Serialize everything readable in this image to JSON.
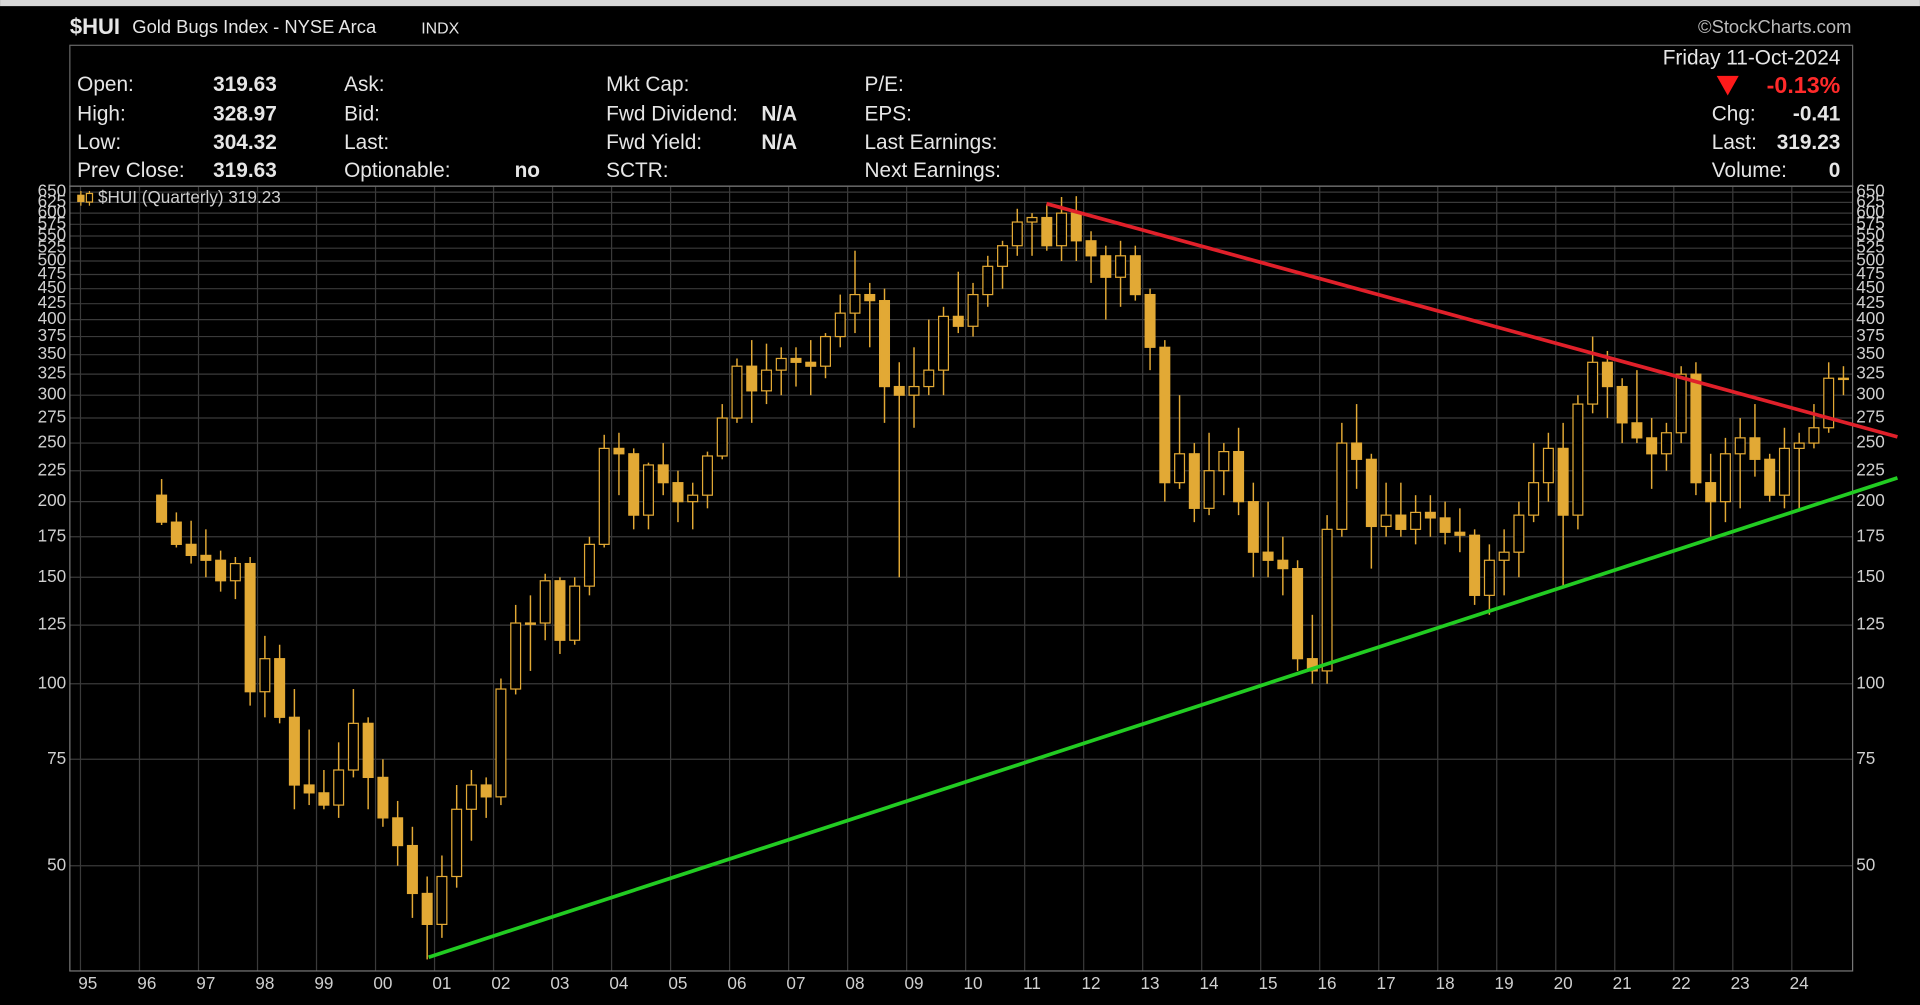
{
  "header": {
    "symbol": "$HUI",
    "name": "Gold Bugs Index - NYSE Arca",
    "exchange": "INDX",
    "source": "©StockCharts.com",
    "date": "Friday 11-Oct-2024",
    "change_pct": "-0.13%",
    "stats": [
      [
        {
          "label": "Open:",
          "value": "319.63"
        },
        {
          "label": "High:",
          "value": "328.97"
        },
        {
          "label": "Low:",
          "value": "304.32"
        },
        {
          "label": "Prev Close:",
          "value": "319.63"
        }
      ],
      [
        {
          "label": "Ask:"
        },
        {
          "label": "Bid:"
        },
        {
          "label": "Last:"
        },
        {
          "label": "Optionable:",
          "value": "no"
        }
      ],
      [
        {
          "label": "Mkt Cap:"
        },
        {
          "label": "Fwd Dividend:",
          "value": "N/A"
        },
        {
          "label": "Fwd Yield:",
          "value": "N/A"
        },
        {
          "label": "SCTR:"
        }
      ],
      [
        {
          "label": "P/E:"
        },
        {
          "label": "EPS:"
        },
        {
          "label": "Last Earnings:"
        },
        {
          "label": "Next Earnings:"
        }
      ]
    ],
    "quote": [
      {
        "label": "Chg:",
        "value": "-0.41"
      },
      {
        "label": "Last:",
        "value": "319.23"
      },
      {
        "label": "Volume:",
        "value": "0"
      }
    ]
  },
  "chart_data": {
    "type": "candlestick",
    "legend": "$HUI (Quarterly) 319.23",
    "color": "#e2a935",
    "log_scale": true,
    "grid": true,
    "xlim": [
      1994.82,
      2025.03
    ],
    "ylim": [
      33.5,
      665
    ],
    "xticks": [
      {
        "value": 1995,
        "label": "95"
      },
      {
        "value": 1996,
        "label": "96"
      },
      {
        "value": 1997,
        "label": "97"
      },
      {
        "value": 1998,
        "label": "98"
      },
      {
        "value": 1999,
        "label": "99"
      },
      {
        "value": 2000,
        "label": "00"
      },
      {
        "value": 2001,
        "label": "01"
      },
      {
        "value": 2002,
        "label": "02"
      },
      {
        "value": 2003,
        "label": "03"
      },
      {
        "value": 2004,
        "label": "04"
      },
      {
        "value": 2005,
        "label": "05"
      },
      {
        "value": 2006,
        "label": "06"
      },
      {
        "value": 2007,
        "label": "07"
      },
      {
        "value": 2008,
        "label": "08"
      },
      {
        "value": 2009,
        "label": "09"
      },
      {
        "value": 2010,
        "label": "10"
      },
      {
        "value": 2011,
        "label": "11"
      },
      {
        "value": 2012,
        "label": "12"
      },
      {
        "value": 2013,
        "label": "13"
      },
      {
        "value": 2014,
        "label": "14"
      },
      {
        "value": 2015,
        "label": "15"
      },
      {
        "value": 2016,
        "label": "16"
      },
      {
        "value": 2017,
        "label": "17"
      },
      {
        "value": 2018,
        "label": "18"
      },
      {
        "value": 2019,
        "label": "19"
      },
      {
        "value": 2020,
        "label": "20"
      },
      {
        "value": 2021,
        "label": "21"
      },
      {
        "value": 2022,
        "label": "22"
      },
      {
        "value": 2023,
        "label": "23"
      },
      {
        "value": 2024,
        "label": "24"
      }
    ],
    "yticks": [
      50,
      75,
      100,
      125,
      150,
      175,
      200,
      225,
      250,
      275,
      300,
      325,
      350,
      375,
      400,
      425,
      450,
      475,
      500,
      525,
      550,
      575,
      600,
      625,
      650
    ],
    "x": [
      1996.375,
      1996.625,
      1996.875,
      1997.125,
      1997.375,
      1997.625,
      1997.875,
      1998.125,
      1998.375,
      1998.625,
      1998.875,
      1999.125,
      1999.375,
      1999.625,
      1999.875,
      2000.125,
      2000.375,
      2000.625,
      2000.875,
      2001.125,
      2001.375,
      2001.625,
      2001.875,
      2002.125,
      2002.375,
      2002.625,
      2002.875,
      2003.125,
      2003.375,
      2003.625,
      2003.875,
      2004.125,
      2004.375,
      2004.625,
      2004.875,
      2005.125,
      2005.375,
      2005.625,
      2005.875,
      2006.125,
      2006.375,
      2006.625,
      2006.875,
      2007.125,
      2007.375,
      2007.625,
      2007.875,
      2008.125,
      2008.375,
      2008.625,
      2008.875,
      2009.125,
      2009.375,
      2009.625,
      2009.875,
      2010.125,
      2010.375,
      2010.625,
      2010.875,
      2011.125,
      2011.375,
      2011.625,
      2011.875,
      2012.125,
      2012.375,
      2012.625,
      2012.875,
      2013.125,
      2013.375,
      2013.625,
      2013.875,
      2014.125,
      2014.375,
      2014.625,
      2014.875,
      2015.125,
      2015.375,
      2015.625,
      2015.875,
      2016.125,
      2016.375,
      2016.625,
      2016.875,
      2017.125,
      2017.375,
      2017.625,
      2017.875,
      2018.125,
      2018.375,
      2018.625,
      2018.875,
      2019.125,
      2019.375,
      2019.625,
      2019.875,
      2020.125,
      2020.375,
      2020.625,
      2020.875,
      2021.125,
      2021.375,
      2021.625,
      2021.875,
      2022.125,
      2022.375,
      2022.625,
      2022.875,
      2023.125,
      2023.375,
      2023.625,
      2023.875,
      2024.125,
      2024.375,
      2024.625,
      2024.875
    ],
    "open": [
      205,
      185,
      170,
      163,
      160,
      148,
      158,
      97,
      110,
      88,
      68,
      66,
      63,
      72,
      86,
      70,
      60,
      54,
      45,
      40,
      48,
      62,
      68,
      65,
      98,
      126,
      126,
      148,
      118,
      145,
      170,
      245,
      240,
      190,
      230,
      215,
      200,
      205,
      238,
      275,
      335,
      305,
      330,
      345,
      340,
      335,
      375,
      410,
      440,
      430,
      310,
      300,
      310,
      330,
      405,
      390,
      440,
      490,
      530,
      580,
      590,
      530,
      600,
      540,
      510,
      470,
      510,
      440,
      360,
      215,
      240,
      195,
      225,
      242,
      200,
      165,
      160,
      155,
      110,
      105,
      180,
      250,
      235,
      182,
      190,
      180,
      192,
      188,
      178,
      176,
      140,
      160,
      165,
      190,
      215,
      245,
      190,
      290,
      340,
      310,
      270,
      255,
      240,
      260,
      325,
      215,
      200,
      240,
      255,
      235,
      205,
      245,
      250,
      265,
      320
    ],
    "high": [
      218,
      192,
      186,
      180,
      166,
      162,
      162,
      120,
      116,
      98,
      84,
      72,
      80,
      98,
      88,
      75,
      64,
      58,
      48,
      52,
      68,
      72,
      70,
      102,
      135,
      140,
      152,
      150,
      150,
      175,
      258,
      260,
      245,
      232,
      250,
      225,
      215,
      242,
      290,
      345,
      370,
      365,
      360,
      360,
      370,
      380,
      440,
      520,
      460,
      450,
      340,
      360,
      400,
      420,
      480,
      460,
      510,
      540,
      610,
      600,
      620,
      638,
      640,
      560,
      530,
      540,
      530,
      450,
      370,
      300,
      250,
      260,
      250,
      265,
      215,
      200,
      175,
      160,
      130,
      190,
      270,
      290,
      240,
      215,
      215,
      205,
      205,
      200,
      195,
      180,
      170,
      180,
      200,
      250,
      260,
      270,
      300,
      375,
      355,
      320,
      330,
      275,
      270,
      335,
      340,
      240,
      255,
      275,
      290,
      240,
      265,
      260,
      290,
      340,
      335
    ],
    "low": [
      183,
      168,
      158,
      150,
      142,
      138,
      92,
      88,
      86,
      62,
      63,
      62,
      60,
      70,
      62,
      58,
      50,
      41,
      35,
      38,
      46,
      55,
      60,
      63,
      96,
      105,
      118,
      112,
      116,
      140,
      168,
      205,
      180,
      180,
      205,
      185,
      180,
      195,
      235,
      270,
      270,
      290,
      300,
      310,
      300,
      320,
      360,
      380,
      360,
      270,
      150,
      265,
      300,
      300,
      380,
      375,
      420,
      450,
      510,
      510,
      520,
      500,
      500,
      460,
      400,
      420,
      430,
      330,
      200,
      210,
      185,
      190,
      205,
      190,
      150,
      150,
      140,
      105,
      100,
      100,
      175,
      210,
      155,
      175,
      175,
      170,
      175,
      170,
      165,
      135,
      130,
      140,
      150,
      185,
      200,
      145,
      180,
      280,
      275,
      250,
      250,
      210,
      225,
      250,
      205,
      175,
      185,
      195,
      220,
      200,
      195,
      195,
      245,
      260,
      300
    ],
    "close": [
      185,
      170,
      163,
      160,
      148,
      158,
      97,
      110,
      88,
      68,
      66,
      63,
      72,
      86,
      70,
      60,
      54,
      45,
      40,
      48,
      62,
      68,
      65,
      98,
      126,
      126,
      148,
      118,
      145,
      170,
      245,
      240,
      190,
      230,
      215,
      200,
      205,
      238,
      275,
      335,
      305,
      330,
      345,
      340,
      335,
      375,
      410,
      440,
      430,
      310,
      300,
      310,
      330,
      405,
      390,
      440,
      490,
      530,
      580,
      590,
      530,
      600,
      540,
      510,
      470,
      510,
      440,
      360,
      215,
      240,
      195,
      225,
      242,
      200,
      165,
      160,
      155,
      110,
      105,
      180,
      250,
      235,
      182,
      190,
      180,
      192,
      188,
      178,
      176,
      140,
      160,
      165,
      190,
      215,
      245,
      190,
      290,
      340,
      310,
      270,
      255,
      240,
      260,
      325,
      215,
      200,
      240,
      255,
      235,
      205,
      245,
      250,
      265,
      320,
      319.23
    ],
    "trendlines": [
      {
        "color": "#e0202a",
        "x": [
          2011.37,
          2025.79
        ],
        "y": [
          622,
          256
        ]
      },
      {
        "color": "#22cc22",
        "x": [
          2000.9,
          2025.79
        ],
        "y": [
          35.3,
          219
        ]
      }
    ]
  }
}
